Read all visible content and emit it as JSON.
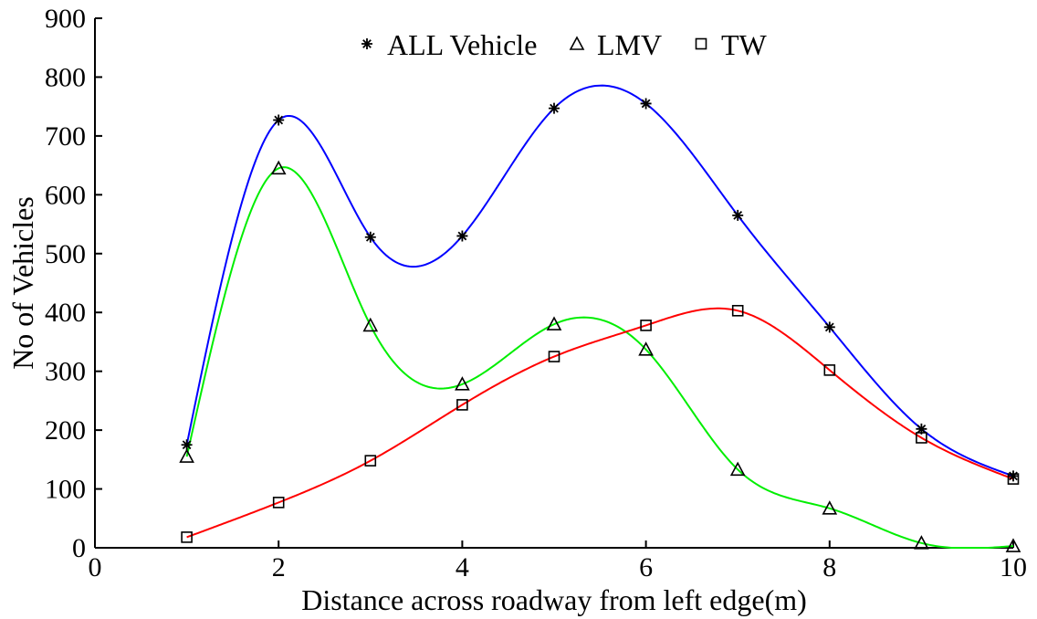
{
  "chart_data": {
    "type": "line",
    "xlabel": "Distance across roadway from left edge(m)",
    "ylabel": "No of Vehicles",
    "xlim": [
      0,
      10
    ],
    "ylim": [
      0,
      900
    ],
    "xticks": [
      "0",
      "2",
      "4",
      "6",
      "8",
      "10"
    ],
    "yticks": [
      "0",
      "100",
      "200",
      "300",
      "400",
      "500",
      "600",
      "700",
      "800",
      "900"
    ],
    "grid": false,
    "legend_position": "top",
    "x": [
      1,
      2,
      3,
      4,
      5,
      6,
      7,
      8,
      9,
      10
    ],
    "series": [
      {
        "name": "ALL Vehicle",
        "marker": "asterisk",
        "color": "#0000ff",
        "values": [
          175,
          727,
          528,
          530,
          747,
          755,
          565,
          375,
          202,
          122
        ]
      },
      {
        "name": "LMV",
        "marker": "triangle",
        "color": "#00ee00",
        "values": [
          155,
          645,
          378,
          278,
          380,
          337,
          133,
          67,
          8,
          3
        ]
      },
      {
        "name": "TW",
        "marker": "square",
        "color": "#ff0000",
        "values": [
          18,
          77,
          148,
          243,
          325,
          378,
          403,
          302,
          187,
          117
        ]
      }
    ]
  }
}
